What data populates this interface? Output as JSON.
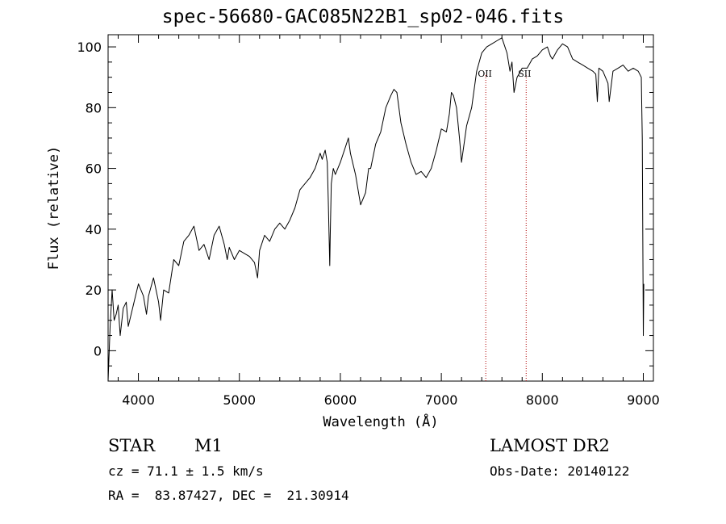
{
  "chart_data": {
    "type": "line",
    "title": "spec-56680-GAC085N22B1_sp02-046.fits",
    "xlabel": "Wavelength (Å)",
    "ylabel": "Flux (relative)",
    "xlim": [
      3700,
      9100
    ],
    "ylim": [
      -10,
      104
    ],
    "x_ticks": [
      4000,
      5000,
      6000,
      7000,
      8000,
      9000
    ],
    "y_ticks": [
      0,
      20,
      40,
      60,
      80,
      100
    ],
    "x_tick_labels": [
      "4000",
      "5000",
      "6000",
      "7000",
      "8000",
      "9000"
    ],
    "y_tick_labels": [
      "0",
      "20",
      "40",
      "60",
      "80",
      "100"
    ],
    "grid": false,
    "series": [
      {
        "color": "#000000",
        "x": [
          3700,
          3720,
          3740,
          3760,
          3780,
          3800,
          3820,
          3850,
          3880,
          3900,
          3950,
          4000,
          4050,
          4080,
          4100,
          4150,
          4200,
          4220,
          4250,
          4300,
          4350,
          4400,
          4450,
          4500,
          4550,
          4600,
          4650,
          4700,
          4750,
          4800,
          4850,
          4880,
          4900,
          4950,
          5000,
          5050,
          5100,
          5150,
          5180,
          5200,
          5250,
          5300,
          5350,
          5400,
          5450,
          5500,
          5550,
          5600,
          5650,
          5700,
          5750,
          5800,
          5820,
          5850,
          5870,
          5880,
          5890,
          5895,
          5900,
          5910,
          5930,
          5950,
          6000,
          6050,
          6080,
          6100,
          6150,
          6200,
          6250,
          6280,
          6300,
          6350,
          6400,
          6450,
          6500,
          6530,
          6560,
          6600,
          6650,
          6700,
          6750,
          6800,
          6850,
          6900,
          6950,
          7000,
          7050,
          7080,
          7100,
          7120,
          7150,
          7180,
          7200,
          7250,
          7300,
          7350,
          7400,
          7450,
          7500,
          7550,
          7600,
          7620,
          7650,
          7680,
          7700,
          7720,
          7750,
          7800,
          7850,
          7900,
          7950,
          8000,
          8050,
          8080,
          8100,
          8150,
          8200,
          8250,
          8300,
          8350,
          8400,
          8450,
          8500,
          8530,
          8545,
          8560,
          8600,
          8650,
          8662,
          8700,
          8750,
          8800,
          8850,
          8900,
          8950,
          8980,
          8990,
          9000,
          9005
        ],
        "y": [
          -10,
          8,
          20,
          10,
          12,
          15,
          5,
          14,
          16,
          8,
          15,
          22,
          18,
          12,
          18,
          24,
          16,
          10,
          20,
          19,
          30,
          28,
          36,
          38,
          41,
          33,
          35,
          30,
          38,
          41,
          35,
          30,
          34,
          30,
          33,
          32,
          31,
          29,
          24,
          33,
          38,
          36,
          40,
          42,
          40,
          43,
          47,
          53,
          55,
          57,
          60,
          65,
          63,
          66,
          62,
          50,
          35,
          28,
          38,
          55,
          60,
          58,
          62,
          67,
          70,
          65,
          58,
          48,
          52,
          60,
          60,
          68,
          72,
          80,
          84,
          86,
          85,
          75,
          68,
          62,
          58,
          59,
          57,
          60,
          66,
          73,
          72,
          78,
          85,
          84,
          80,
          70,
          62,
          74,
          80,
          92,
          98,
          100,
          101,
          102,
          103,
          101,
          98,
          92,
          95,
          85,
          90,
          93,
          93,
          96,
          97,
          99,
          100,
          97,
          96,
          99,
          101,
          100,
          96,
          95,
          94,
          93,
          92,
          91,
          82,
          93,
          92,
          88,
          82,
          92,
          93,
          94,
          92,
          93,
          92,
          90,
          70,
          5,
          22
        ]
      }
    ],
    "line_markers": [
      {
        "label": "OII",
        "x": 7440
      },
      {
        "label": "SII",
        "x": 7840
      }
    ]
  },
  "info": {
    "object_class": "STAR",
    "subclass": "M1",
    "survey": "LAMOST DR2",
    "redshift_text": "cz = 71.1 ± 1.5 km/s",
    "obs_date_text": "Obs-Date: 20140122",
    "coords_text": "RA =  83.87427, DEC =  21.30914"
  }
}
